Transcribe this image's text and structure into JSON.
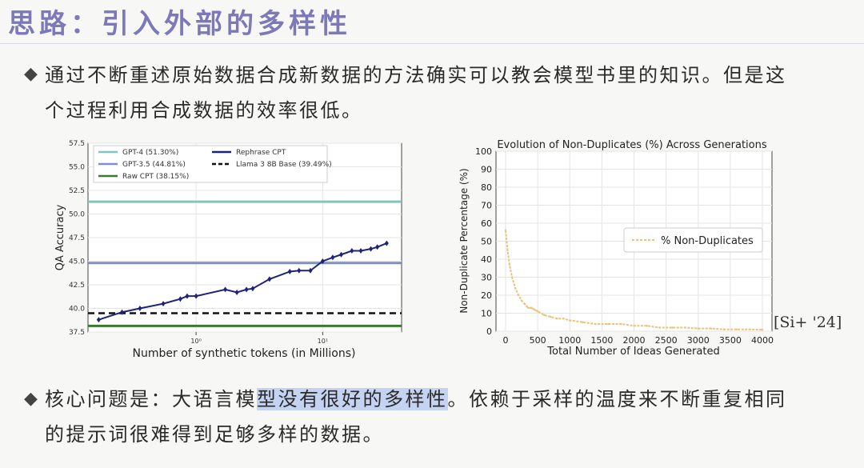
{
  "slide": {
    "title": "思路：引入外部的多样性",
    "bullet_symbol": "◆",
    "bullet1": {
      "line1": "通过不断重述原始数据合成新数据的方法确实可以教会模型书里的知识。但是这",
      "line2": "个过程利用合成数据的效率很低。"
    },
    "bullet2": {
      "pre": "核心问题是：大语言模",
      "highlight": "型没有很好的多样性",
      "post": "。依赖于采样的温度来不断重复相同",
      "line2": "的提示词很难得到足够多样的数据。"
    },
    "citation": "[Si+ '24]"
  },
  "chart_data": [
    {
      "type": "line",
      "xlabel": "Number of synthetic tokens (in Millions)",
      "ylabel": "QA Accuracy",
      "xscale": "log",
      "ylim": [
        37.5,
        57.5
      ],
      "yticks": [
        "57.5",
        "55.0",
        "52.5",
        "50.0",
        "47.5",
        "45.0",
        "42.5",
        "40.0",
        "37.5"
      ],
      "xticks": [
        "10⁰",
        "10¹"
      ],
      "legend": [
        "GPT-4 (51.30%)",
        "GPT-3.5 (44.81%)",
        "Raw CPT (38.15%)",
        "Rephrase CPT",
        "Llama 3 8B Base (39.49%)"
      ],
      "hlines": [
        {
          "name": "GPT-4 (51.30%)",
          "y": 51.3,
          "color": "#7fc6c0",
          "style": "solid"
        },
        {
          "name": "GPT-3.5 (44.81%)",
          "y": 44.81,
          "color": "#7a90c6",
          "style": "solid"
        },
        {
          "name": "Raw CPT (38.15%)",
          "y": 38.15,
          "color": "#3a7a30",
          "style": "solid"
        },
        {
          "name": "Llama 3 8B Base (39.49%)",
          "y": 39.49,
          "color": "#111111",
          "style": "dashed"
        }
      ],
      "series": [
        {
          "name": "Rephrase CPT",
          "color": "#1e237a",
          "x": [
            0.17,
            0.26,
            0.36,
            0.55,
            0.75,
            0.85,
            1.0,
            1.7,
            2.1,
            2.5,
            2.8,
            3.8,
            5.5,
            6.5,
            8,
            10,
            12,
            14,
            17,
            20,
            24,
            27,
            32
          ],
          "y": [
            38.8,
            39.6,
            40.0,
            40.5,
            41.0,
            41.3,
            41.3,
            42.0,
            41.7,
            42.0,
            42.1,
            43.1,
            43.9,
            44.0,
            44.0,
            45.0,
            45.4,
            45.7,
            46.1,
            46.1,
            46.3,
            46.5,
            46.9
          ]
        }
      ]
    },
    {
      "type": "line",
      "title": "Evolution of Non-Duplicates (%) Across Generations",
      "xlabel": "Total Number of Ideas Generated",
      "ylabel": "Non-Duplicate Percentage (%)",
      "xlim": [
        0,
        4000
      ],
      "ylim": [
        0,
        100
      ],
      "xticks": [
        "0",
        "500",
        "1000",
        "1500",
        "2000",
        "2500",
        "3000",
        "3500",
        "4000"
      ],
      "yticks": [
        "0",
        "10",
        "20",
        "30",
        "40",
        "50",
        "60",
        "70",
        "80",
        "90",
        "100"
      ],
      "legend": [
        "% Non-Duplicates"
      ],
      "series": [
        {
          "name": "% Non-Duplicates",
          "color": "#e8c37a",
          "x": [
            0,
            30,
            60,
            100,
            150,
            200,
            250,
            300,
            350,
            400,
            450,
            500,
            600,
            700,
            800,
            900,
            1000,
            1200,
            1400,
            1600,
            1800,
            2000,
            2200,
            2400,
            2600,
            2800,
            3000,
            3200,
            3400,
            3600,
            3800,
            4000
          ],
          "y": [
            56,
            45,
            37,
            30,
            24,
            20,
            17,
            15,
            13,
            13,
            12,
            11,
            9,
            8,
            7,
            7,
            6,
            5,
            4,
            4,
            4,
            3,
            3,
            2,
            2,
            2,
            1.5,
            1.5,
            1,
            1,
            1,
            0.8
          ]
        }
      ]
    }
  ]
}
